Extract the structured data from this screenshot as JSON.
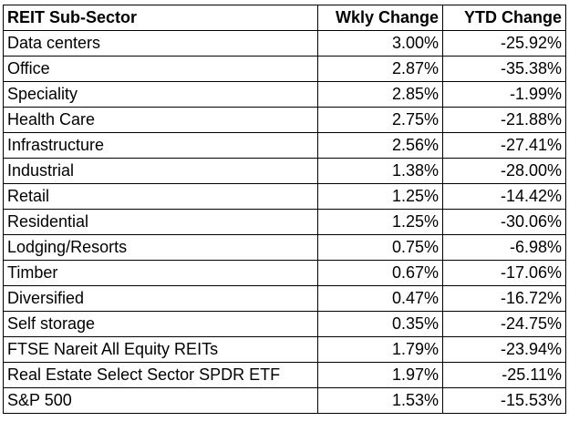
{
  "table": {
    "headers": {
      "sector": "REIT Sub-Sector",
      "weekly": "Wkly Change",
      "ytd": "YTD Change"
    },
    "rows": [
      {
        "sector": "Data centers",
        "weekly": "3.00%",
        "ytd": "-25.92%"
      },
      {
        "sector": "Office",
        "weekly": "2.87%",
        "ytd": "-35.38%"
      },
      {
        "sector": "Speciality",
        "weekly": "2.85%",
        "ytd": "-1.99%"
      },
      {
        "sector": "Health Care",
        "weekly": "2.75%",
        "ytd": "-21.88%"
      },
      {
        "sector": "Infrastructure",
        "weekly": "2.56%",
        "ytd": "-27.41%"
      },
      {
        "sector": "Industrial",
        "weekly": "1.38%",
        "ytd": "-28.00%"
      },
      {
        "sector": "Retail",
        "weekly": "1.25%",
        "ytd": "-14.42%"
      },
      {
        "sector": "Residential",
        "weekly": "1.25%",
        "ytd": "-30.06%"
      },
      {
        "sector": "Lodging/Resorts",
        "weekly": "0.75%",
        "ytd": "-6.98%"
      },
      {
        "sector": "Timber",
        "weekly": "0.67%",
        "ytd": "-17.06%"
      },
      {
        "sector": "Diversified",
        "weekly": "0.47%",
        "ytd": "-16.72%"
      },
      {
        "sector": "Self storage",
        "weekly": "0.35%",
        "ytd": "-24.75%"
      },
      {
        "sector": "FTSE Nareit All Equity REITs",
        "weekly": "1.79%",
        "ytd": "-23.94%"
      },
      {
        "sector": "Real Estate Select Sector SPDR ETF",
        "weekly": "1.97%",
        "ytd": "-25.11%"
      },
      {
        "sector": "S&P 500",
        "weekly": "1.53%",
        "ytd": "-15.53%"
      }
    ]
  }
}
